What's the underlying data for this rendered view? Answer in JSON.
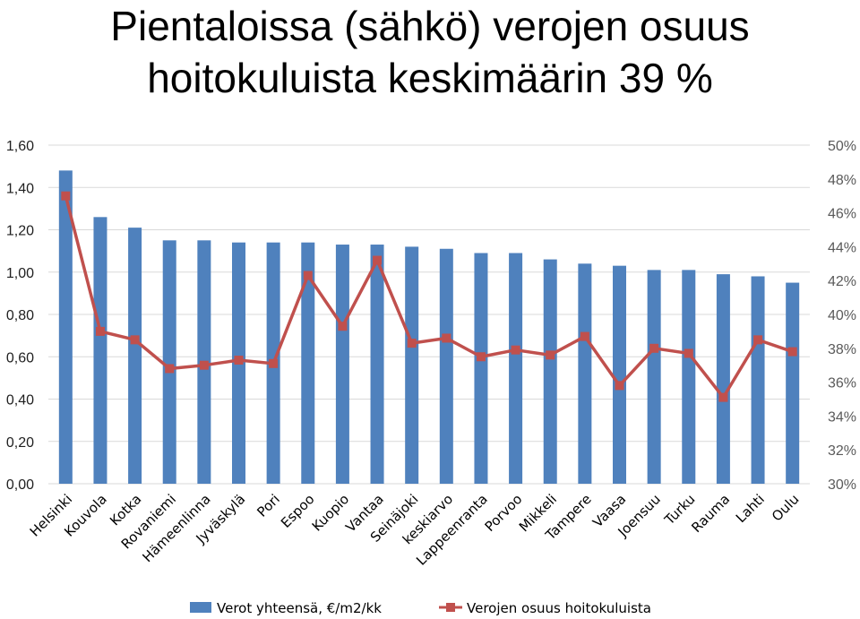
{
  "title": {
    "line1": "Pientaloissa (sähkö) verojen osuus",
    "line2": "hoitokuluista keskimäärin 39 %"
  },
  "colors": {
    "bar": "#4f81bd",
    "line": "#c0504d",
    "grid": "#d9d9d9"
  },
  "chart_data": {
    "type": "bar",
    "categories": [
      "Helsinki",
      "Kouvola",
      "Kotka",
      "Rovaniemi",
      "Hämeenlinna",
      "Jyväskylä",
      "Pori",
      "Espoo",
      "Kuopio",
      "Vantaa",
      "Seinäjoki",
      "keskiarvo",
      "Lappeenranta",
      "Porvoo",
      "Mikkeli",
      "Tampere",
      "Vaasa",
      "Joensuu",
      "Turku",
      "Rauma",
      "Lahti",
      "Oulu"
    ],
    "series": [
      {
        "name": "Verot yhteensä, €/m2/kk",
        "type": "bar",
        "axis": "left",
        "values": [
          1.48,
          1.26,
          1.21,
          1.15,
          1.15,
          1.14,
          1.14,
          1.14,
          1.13,
          1.13,
          1.12,
          1.11,
          1.09,
          1.09,
          1.06,
          1.04,
          1.03,
          1.01,
          1.01,
          0.99,
          0.98,
          0.95
        ]
      },
      {
        "name": "Verojen osuus hoitokuluista",
        "type": "line",
        "axis": "right",
        "marker": "square",
        "values": [
          47.0,
          39.0,
          38.5,
          36.8,
          37.0,
          37.3,
          37.1,
          42.3,
          39.3,
          43.2,
          38.3,
          38.6,
          37.5,
          37.9,
          37.6,
          38.7,
          35.8,
          38.0,
          37.7,
          35.1,
          38.5,
          37.8
        ]
      }
    ],
    "ylim_left": [
      0,
      1.6
    ],
    "yticks_left": [
      "0,00",
      "0,20",
      "0,40",
      "0,60",
      "0,80",
      "1,00",
      "1,20",
      "1,40",
      "1,60"
    ],
    "ylim_right": [
      30,
      50
    ],
    "yticks_right": [
      "30%",
      "32%",
      "34%",
      "36%",
      "38%",
      "40%",
      "42%",
      "44%",
      "46%",
      "48%",
      "50%"
    ],
    "grid": "horizontal",
    "legend_position": "bottom"
  }
}
